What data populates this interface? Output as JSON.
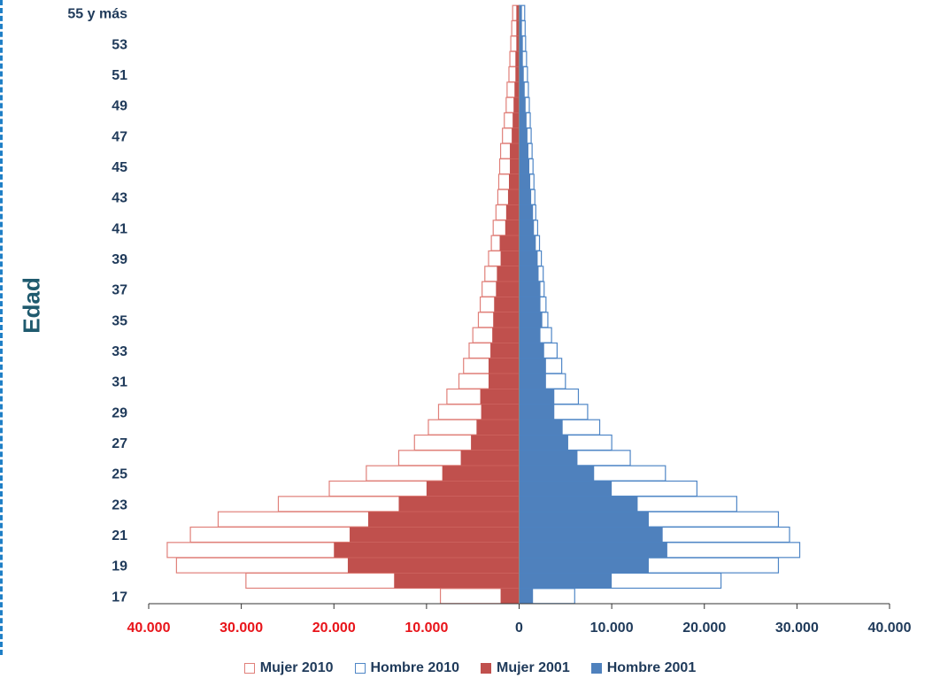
{
  "chart_data": {
    "type": "bar",
    "orientation": "horizontal-population-pyramid",
    "ylabel": "Edad",
    "xlim": [
      -40000,
      40000
    ],
    "x_ticks": [
      {
        "value": -40000,
        "label": "40.000"
      },
      {
        "value": -30000,
        "label": "30.000"
      },
      {
        "value": -20000,
        "label": "20.000"
      },
      {
        "value": -10000,
        "label": "10.000"
      },
      {
        "value": 0,
        "label": "0"
      },
      {
        "value": 10000,
        "label": "10.000"
      },
      {
        "value": 20000,
        "label": "20.000"
      },
      {
        "value": 30000,
        "label": "30.000"
      },
      {
        "value": 40000,
        "label": "40.000"
      }
    ],
    "neg_tick_color": "#e8141a",
    "pos_tick_color": "#1f3a5a",
    "age_tick_color": "#1f3a5a",
    "categories": [
      "17",
      "18",
      "19",
      "20",
      "21",
      "22",
      "23",
      "24",
      "25",
      "26",
      "27",
      "28",
      "29",
      "30",
      "31",
      "32",
      "33",
      "34",
      "35",
      "36",
      "37",
      "38",
      "39",
      "40",
      "41",
      "42",
      "43",
      "44",
      "45",
      "46",
      "47",
      "48",
      "49",
      "50",
      "51",
      "52",
      "53",
      "54",
      "55 y más"
    ],
    "tick_categories": [
      "17",
      "19",
      "21",
      "23",
      "25",
      "27",
      "29",
      "31",
      "33",
      "35",
      "37",
      "39",
      "41",
      "43",
      "45",
      "47",
      "49",
      "51",
      "53",
      "55 y más"
    ],
    "series": [
      {
        "name": "Mujer 2010",
        "style": "outline",
        "side": "left",
        "color": "#e0807a",
        "values": [
          8500,
          29500,
          37000,
          38000,
          35500,
          32500,
          26000,
          20500,
          16500,
          13000,
          11300,
          9800,
          8700,
          7800,
          6500,
          6000,
          5400,
          5000,
          4400,
          4200,
          4000,
          3700,
          3300,
          3000,
          2800,
          2500,
          2300,
          2200,
          2100,
          2000,
          1800,
          1600,
          1400,
          1300,
          1100,
          1000,
          900,
          800,
          700
        ]
      },
      {
        "name": "Hombre 2010",
        "style": "outline",
        "side": "right",
        "color": "#4f86c6",
        "values": [
          6000,
          21800,
          28000,
          30300,
          29200,
          28000,
          23500,
          19200,
          15800,
          12000,
          10000,
          8700,
          7400,
          6400,
          5000,
          4600,
          4100,
          3500,
          3100,
          2900,
          2700,
          2600,
          2400,
          2200,
          2000,
          1800,
          1700,
          1600,
          1500,
          1400,
          1300,
          1200,
          1100,
          1000,
          900,
          800,
          700,
          650,
          600
        ]
      },
      {
        "name": "Mujer 2001",
        "style": "filled",
        "side": "left",
        "color": "#c0504d",
        "values": [
          2000,
          13500,
          18500,
          20000,
          18300,
          16300,
          13000,
          10000,
          8300,
          6300,
          5200,
          4600,
          4100,
          4200,
          3300,
          3300,
          3100,
          2900,
          2800,
          2700,
          2500,
          2400,
          2000,
          2100,
          1500,
          1400,
          1200,
          1100,
          1000,
          1000,
          800,
          700,
          600,
          500,
          400,
          400,
          300,
          300,
          300
        ]
      },
      {
        "name": "Hombre 2001",
        "style": "filled",
        "side": "right",
        "color": "#4f81bd",
        "values": [
          1500,
          10000,
          14000,
          16000,
          15500,
          14000,
          12800,
          10000,
          8100,
          6300,
          5300,
          4700,
          3800,
          3800,
          2900,
          2900,
          2700,
          2300,
          2500,
          2300,
          2300,
          2100,
          2000,
          1800,
          1600,
          1500,
          1300,
          1200,
          1100,
          1000,
          900,
          800,
          700,
          600,
          500,
          400,
          400,
          300,
          300
        ]
      }
    ],
    "legend_position": "bottom",
    "grid": false
  }
}
